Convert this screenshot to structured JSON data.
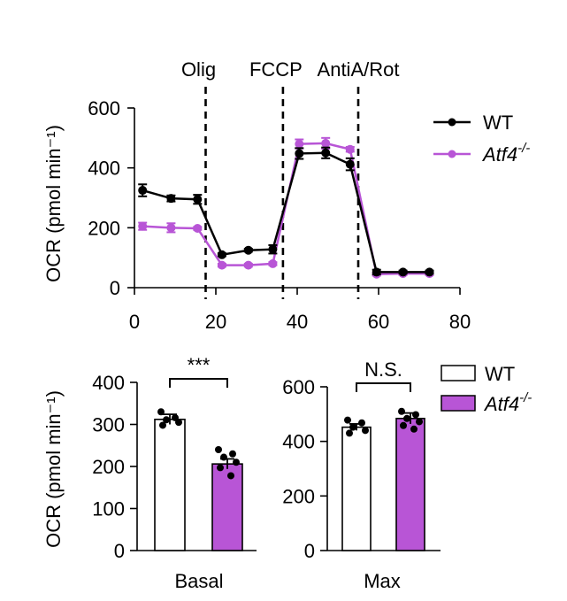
{
  "colors": {
    "wt": "#000000",
    "ko": "#b855d6",
    "ko_bar": "#b855d6"
  },
  "chart_data": [
    {
      "type": "line",
      "ylabel": "OCR (pmol min⁻¹)",
      "xlim": [
        0,
        80
      ],
      "ylim": [
        0,
        600
      ],
      "xticks": [
        "0",
        "20",
        "40",
        "60",
        "80"
      ],
      "yticks": [
        "0",
        "200",
        "400",
        "600"
      ],
      "injections": [
        {
          "label": "Olig",
          "x": 17.5
        },
        {
          "label": "FCCP",
          "x": 36.5
        },
        {
          "label": "AntiA/Rot",
          "x": 55
        }
      ],
      "legend": {
        "wt": "WT",
        "ko_base": "Atf4",
        "ko_sup": "-/-"
      },
      "series": [
        {
          "name": "WT",
          "x": [
            2,
            9,
            15.5,
            21.5,
            28,
            34,
            40.5,
            47,
            53,
            59.5,
            66,
            72.5
          ],
          "y": [
            325,
            298,
            295,
            110,
            125,
            128,
            448,
            450,
            412,
            52,
            52,
            52
          ],
          "err": [
            20,
            10,
            15,
            5,
            5,
            14,
            18,
            18,
            20,
            8,
            5,
            5
          ]
        },
        {
          "name": "Atf4-/-",
          "x": [
            2,
            9,
            15.5,
            21.5,
            28,
            34,
            40.5,
            47,
            53,
            59.5,
            66,
            72.5
          ],
          "y": [
            205,
            200,
            198,
            75,
            75,
            80,
            480,
            482,
            462,
            45,
            47,
            47
          ],
          "err": [
            12,
            15,
            5,
            5,
            5,
            5,
            15,
            18,
            8,
            5,
            5,
            5
          ]
        }
      ]
    },
    {
      "type": "bar",
      "ylabel": "OCR (pmol min⁻¹)",
      "category": "Basal",
      "ylim": [
        0,
        400
      ],
      "yticks": [
        "0",
        "100",
        "200",
        "300",
        "400"
      ],
      "significance": "***",
      "values": [
        312,
        206
      ],
      "err": [
        12,
        12
      ],
      "points": [
        [
          330,
          316,
          311,
          305,
          298
        ],
        [
          240,
          230,
          222,
          210,
          197,
          178
        ]
      ]
    },
    {
      "type": "bar",
      "category": "Max",
      "ylim": [
        0,
        600
      ],
      "yticks": [
        "0",
        "200",
        "400",
        "600"
      ],
      "significance": "N.S.",
      "values": [
        452,
        484
      ],
      "err": [
        12,
        20
      ],
      "points": [
        [
          478,
          468,
          452,
          440,
          430
        ],
        [
          510,
          498,
          484,
          472,
          458,
          445
        ]
      ]
    }
  ]
}
